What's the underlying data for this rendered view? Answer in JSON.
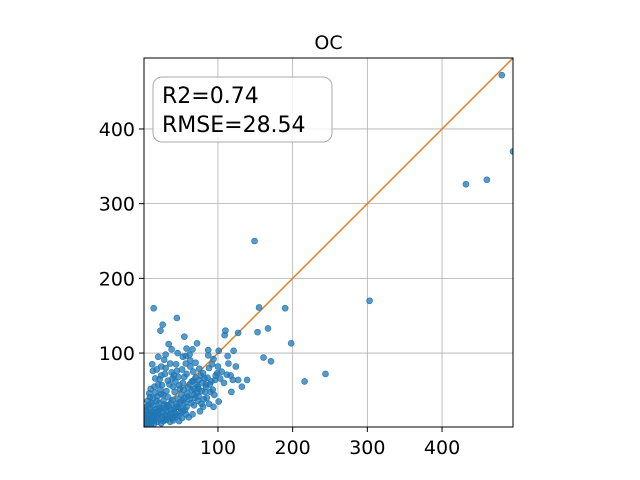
{
  "chart_data": {
    "type": "scatter",
    "title": "OC",
    "xlabel": "",
    "ylabel": "",
    "xlim": [
      1,
      495
    ],
    "ylim": [
      1,
      495
    ],
    "x_ticks": [
      100,
      200,
      300,
      400
    ],
    "y_ticks": [
      100,
      200,
      300,
      400
    ],
    "grid": true,
    "point_color": "#1f77b4",
    "line_color": "#e07b1f",
    "reference_line": {
      "from": [
        1,
        1
      ],
      "to": [
        495,
        495
      ]
    },
    "annotation": {
      "lines": [
        "R2=0.74",
        "RMSE=28.54"
      ],
      "position": "top-left"
    },
    "series": [
      {
        "points": [
          [
            480,
            472
          ],
          [
            495,
            370
          ],
          [
            432,
            326
          ],
          [
            460,
            332
          ],
          [
            303,
            170
          ],
          [
            149,
            250
          ],
          [
            155,
            161
          ],
          [
            190,
            160
          ],
          [
            198,
            113
          ],
          [
            244,
            72
          ],
          [
            216,
            62
          ],
          [
            167,
            133
          ],
          [
            161,
            94
          ],
          [
            171,
            89
          ],
          [
            153,
            128
          ],
          [
            127,
            127
          ],
          [
            121,
            103
          ],
          [
            124,
            82
          ],
          [
            114,
            86
          ],
          [
            112,
            71
          ],
          [
            117,
            70
          ],
          [
            120,
            64
          ],
          [
            127,
            64
          ],
          [
            139,
            64
          ],
          [
            132,
            55
          ],
          [
            118,
            48
          ],
          [
            14,
            160
          ],
          [
            26,
            138
          ],
          [
            23,
            130
          ],
          [
            45,
            147
          ],
          [
            55,
            122
          ],
          [
            58,
            106
          ],
          [
            87,
            97
          ],
          [
            101,
            103
          ],
          [
            110,
            130
          ],
          [
            109,
            124
          ],
          [
            113,
            96
          ],
          [
            99,
            73
          ],
          [
            96,
            64
          ],
          [
            82,
            66
          ],
          [
            84,
            55
          ],
          [
            73,
            55
          ],
          [
            67,
            63
          ],
          [
            77,
            70
          ],
          [
            88,
            80
          ],
          [
            92,
            85
          ],
          [
            57,
            96
          ],
          [
            62,
            98
          ],
          [
            44,
            85
          ],
          [
            28,
            91
          ],
          [
            12,
            85
          ],
          [
            13,
            76
          ],
          [
            18,
            78
          ],
          [
            22,
            65
          ],
          [
            25,
            57
          ],
          [
            29,
            72
          ],
          [
            33,
            63
          ],
          [
            38,
            74
          ],
          [
            40,
            55
          ],
          [
            49,
            52
          ],
          [
            53,
            60
          ],
          [
            58,
            72
          ],
          [
            63,
            82
          ],
          [
            67,
            75
          ],
          [
            72,
            47
          ],
          [
            78,
            32
          ],
          [
            85,
            40
          ],
          [
            90,
            48
          ],
          [
            76,
            22
          ],
          [
            68,
            30
          ],
          [
            60,
            42
          ],
          [
            55,
            33
          ],
          [
            50,
            26
          ],
          [
            46,
            39
          ],
          [
            42,
            48
          ],
          [
            37,
            33
          ],
          [
            33,
            41
          ],
          [
            30,
            26
          ],
          [
            27,
            36
          ],
          [
            24,
            45
          ],
          [
            21,
            27
          ],
          [
            18,
            36
          ],
          [
            16,
            21
          ],
          [
            13,
            30
          ],
          [
            11,
            20
          ],
          [
            9,
            26
          ],
          [
            7,
            16
          ],
          [
            5,
            22
          ],
          [
            4,
            12
          ],
          [
            3,
            8
          ],
          [
            6,
            6
          ],
          [
            9,
            10
          ],
          [
            12,
            13
          ],
          [
            15,
            9
          ],
          [
            18,
            15
          ],
          [
            20,
            18
          ],
          [
            23,
            12
          ],
          [
            26,
            20
          ],
          [
            29,
            17
          ],
          [
            32,
            22
          ],
          [
            35,
            14
          ],
          [
            38,
            19
          ],
          [
            41,
            25
          ],
          [
            44,
            18
          ],
          [
            47,
            28
          ],
          [
            50,
            20
          ],
          [
            53,
            36
          ],
          [
            56,
            24
          ],
          [
            59,
            46
          ],
          [
            62,
            38
          ],
          [
            65,
            50
          ],
          [
            68,
            44
          ],
          [
            71,
            58
          ],
          [
            74,
            52
          ],
          [
            79,
            60
          ],
          [
            83,
            48
          ],
          [
            66,
            18
          ],
          [
            61,
            14
          ],
          [
            57,
            18
          ],
          [
            52,
            13
          ],
          [
            48,
            9
          ],
          [
            43,
            14
          ],
          [
            40,
            10
          ],
          [
            36,
            8
          ],
          [
            31,
            11
          ],
          [
            27,
            9
          ],
          [
            24,
            6
          ],
          [
            19,
            8
          ],
          [
            14,
            5
          ],
          [
            10,
            4
          ],
          [
            8,
            9
          ],
          [
            16,
            12
          ],
          [
            22,
            24
          ],
          [
            28,
            31
          ],
          [
            34,
            29
          ],
          [
            39,
            37
          ],
          [
            45,
            32
          ],
          [
            51,
            44
          ],
          [
            54,
            51
          ],
          [
            48,
            57
          ],
          [
            43,
            62
          ],
          [
            39,
            66
          ],
          [
            35,
            58
          ],
          [
            31,
            49
          ],
          [
            27,
            44
          ],
          [
            23,
            51
          ],
          [
            19,
            42
          ],
          [
            16,
            47
          ],
          [
            13,
            39
          ],
          [
            11,
            33
          ],
          [
            9,
            41
          ],
          [
            7,
            31
          ],
          [
            5,
            28
          ],
          [
            4,
            18
          ],
          [
            2,
            14
          ],
          [
            3,
            24
          ],
          [
            6,
            36
          ],
          [
            8,
            46
          ],
          [
            10,
            52
          ],
          [
            15,
            55
          ],
          [
            20,
            58
          ],
          [
            24,
            70
          ],
          [
            30,
            80
          ],
          [
            36,
            86
          ],
          [
            41,
            70
          ],
          [
            47,
            68
          ],
          [
            52,
            78
          ],
          [
            57,
            86
          ],
          [
            63,
            90
          ],
          [
            70,
            87
          ],
          [
            75,
            79
          ],
          [
            80,
            73
          ],
          [
            86,
            67
          ],
          [
            89,
            58
          ],
          [
            93,
            51
          ],
          [
            95,
            44
          ],
          [
            81,
            38
          ],
          [
            73,
            36
          ],
          [
            69,
            40
          ],
          [
            64,
            33
          ],
          [
            58,
            28
          ],
          [
            53,
            22
          ],
          [
            47,
            16
          ],
          [
            42,
            20
          ],
          [
            37,
            24
          ],
          [
            32,
            30
          ],
          [
            26,
            26
          ],
          [
            21,
            33
          ],
          [
            17,
            25
          ],
          [
            12,
            22
          ],
          [
            9,
            17
          ],
          [
            6,
            12
          ],
          [
            4,
            5
          ],
          [
            2,
            4
          ],
          [
            3,
            2
          ],
          [
            5,
            3
          ],
          [
            7,
            5
          ],
          [
            11,
            7
          ],
          [
            15,
            16
          ],
          [
            19,
            21
          ],
          [
            25,
            15
          ],
          [
            29,
            11
          ],
          [
            34,
            17
          ],
          [
            39,
            13
          ],
          [
            44,
            28
          ],
          [
            49,
            34
          ],
          [
            55,
            40
          ],
          [
            60,
            54
          ],
          [
            65,
            62
          ],
          [
            70,
            67
          ],
          [
            74,
            64
          ],
          [
            78,
            49
          ],
          [
            84,
            58
          ],
          [
            91,
            62
          ],
          [
            97,
            70
          ],
          [
            103,
            66
          ],
          [
            108,
            60
          ],
          [
            105,
            75
          ],
          [
            100,
            82
          ],
          [
            94,
            92
          ],
          [
            87,
            104
          ],
          [
            72,
            113
          ],
          [
            66,
            105
          ],
          [
            53,
            95
          ],
          [
            46,
            100
          ],
          [
            38,
            105
          ],
          [
            34,
            112
          ],
          [
            30,
            98
          ],
          [
            20,
            95
          ],
          [
            16,
            66
          ],
          [
            24,
            82
          ],
          [
            45,
            76
          ],
          [
            55,
            68
          ],
          [
            62,
            58
          ],
          [
            68,
            52
          ],
          [
            74,
            42
          ],
          [
            80,
            28
          ],
          [
            88,
            32
          ],
          [
            94,
            28
          ],
          [
            101,
            35
          ]
        ]
      }
    ]
  }
}
